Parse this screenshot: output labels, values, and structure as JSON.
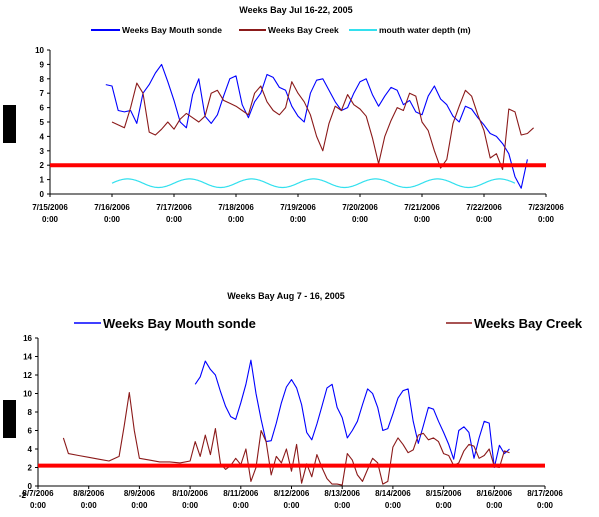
{
  "chart_data": [
    {
      "type": "line",
      "title": "Weeks Bay Jul 16-22, 2005",
      "ylim": [
        0,
        10
      ],
      "yticks": [
        0,
        1,
        2,
        3,
        4,
        5,
        6,
        7,
        8,
        9,
        10
      ],
      "xlim": [
        "2006-07-15",
        "2006-07-23"
      ],
      "xticks": [
        [
          "7/15/2006",
          "0:00"
        ],
        [
          "7/16/2006",
          "0:00"
        ],
        [
          "7/17/2006",
          "0:00"
        ],
        [
          "7/18/2006",
          "0:00"
        ],
        [
          "7/19/2006",
          "0:00"
        ],
        [
          "7/20/2006",
          "0:00"
        ],
        [
          "7/21/2006",
          "0:00"
        ],
        [
          "7/22/2006",
          "0:00"
        ],
        [
          "7/23/2006",
          "0:00"
        ]
      ],
      "legend_position": "top",
      "threshold": {
        "y": 2,
        "color": "#ff0000"
      },
      "series": [
        {
          "name": "Weeks Bay Mouth sonde",
          "color": "#0000ff",
          "x": [
            15.9,
            16.0,
            16.1,
            16.2,
            16.3,
            16.4,
            16.5,
            16.6,
            16.7,
            16.8,
            16.9,
            17.0,
            17.1,
            17.2,
            17.3,
            17.4,
            17.5,
            17.6,
            17.7,
            17.8,
            17.9,
            18.0,
            18.1,
            18.2,
            18.3,
            18.4,
            18.5,
            18.6,
            18.7,
            18.8,
            18.9,
            19.0,
            19.1,
            19.2,
            19.3,
            19.4,
            19.5,
            19.6,
            19.7,
            19.8,
            19.9,
            20.0,
            20.1,
            20.2,
            20.3,
            20.4,
            20.5,
            20.6,
            20.7,
            20.8,
            20.9,
            21.0,
            21.1,
            21.2,
            21.3,
            21.4,
            21.5,
            21.6,
            21.7,
            21.8,
            21.9,
            22.0,
            22.1,
            22.2,
            22.3,
            22.4,
            22.5,
            22.6,
            22.7
          ],
          "y": [
            7.6,
            7.5,
            5.8,
            5.7,
            5.8,
            4.9,
            7.0,
            7.6,
            8.4,
            9.0,
            7.8,
            6.5,
            5.0,
            4.6,
            6.9,
            8.0,
            5.4,
            4.9,
            5.5,
            6.8,
            8.0,
            8.2,
            6.2,
            5.3,
            6.4,
            7.0,
            8.3,
            8.1,
            7.4,
            7.2,
            6.1,
            5.4,
            5.0,
            7.0,
            7.9,
            8.0,
            7.2,
            6.4,
            5.8,
            6.0,
            7.0,
            7.8,
            8.0,
            6.9,
            6.1,
            6.8,
            7.4,
            7.2,
            6.2,
            6.5,
            5.7,
            5.5,
            6.8,
            7.5,
            6.6,
            6.2,
            5.4,
            5.0,
            6.1,
            5.9,
            5.3,
            4.8,
            4.2,
            4.0,
            3.5,
            2.8,
            1.2,
            0.4,
            2.4
          ]
        },
        {
          "name": "Weeks Bay Creek",
          "color": "#8b1a1a",
          "x": [
            16.0,
            16.1,
            16.2,
            16.3,
            16.4,
            16.5,
            16.6,
            16.7,
            16.8,
            16.9,
            17.0,
            17.1,
            17.2,
            17.3,
            17.4,
            17.5,
            17.6,
            17.7,
            17.8,
            17.9,
            18.0,
            18.1,
            18.2,
            18.3,
            18.4,
            18.5,
            18.6,
            18.7,
            18.8,
            18.9,
            19.0,
            19.1,
            19.2,
            19.3,
            19.4,
            19.5,
            19.6,
            19.7,
            19.8,
            19.9,
            20.0,
            20.1,
            20.2,
            20.3,
            20.4,
            20.5,
            20.6,
            20.7,
            20.8,
            20.9,
            21.0,
            21.1,
            21.2,
            21.3,
            21.4,
            21.5,
            21.6,
            21.7,
            21.8,
            21.9,
            22.0,
            22.1,
            22.2,
            22.3,
            22.4,
            22.5,
            22.6,
            22.7,
            22.8
          ],
          "y": [
            5.0,
            4.8,
            4.6,
            6.0,
            7.7,
            7.0,
            4.3,
            4.1,
            4.5,
            5.0,
            4.5,
            5.2,
            5.6,
            5.3,
            5.0,
            5.4,
            7.0,
            7.2,
            6.5,
            6.3,
            6.1,
            5.8,
            5.5,
            7.0,
            7.5,
            6.4,
            5.8,
            5.5,
            6.0,
            7.8,
            7.0,
            6.4,
            5.5,
            4.0,
            3.0,
            4.9,
            6.1,
            5.8,
            6.9,
            6.2,
            5.9,
            5.4,
            3.9,
            2.1,
            4.0,
            5.1,
            6.0,
            5.8,
            7.0,
            6.8,
            5.0,
            4.4,
            3.0,
            1.8,
            2.4,
            4.9,
            6.1,
            7.2,
            6.8,
            5.5,
            4.4,
            2.5,
            2.8,
            1.7,
            5.9,
            5.7,
            4.1,
            4.2,
            4.6
          ]
        },
        {
          "name": "mouth water depth (m)",
          "color": "#33e0ee",
          "wave": {
            "x_start": 16.0,
            "x_end": 22.5,
            "center": 0.75,
            "amplitude": 0.3,
            "period_days": 1.0
          }
        }
      ]
    },
    {
      "type": "line",
      "title": "Weeks Bay Aug 7 - 16, 2005",
      "ylim": [
        0,
        16
      ],
      "yticks": [
        0,
        2,
        4,
        6,
        8,
        10,
        12,
        14,
        16
      ],
      "extra_tick_label": "-2",
      "xlim": [
        "2006-08-07",
        "2006-08-17"
      ],
      "xticks": [
        [
          "8/7/2006",
          "0:00"
        ],
        [
          "8/8/2006",
          "0:00"
        ],
        [
          "8/9/2006",
          "0:00"
        ],
        [
          "8/10/2006",
          "0:00"
        ],
        [
          "8/11/2006",
          "0:00"
        ],
        [
          "8/12/2006",
          "0:00"
        ],
        [
          "8/13/2006",
          "0:00"
        ],
        [
          "8/14/2006",
          "0:00"
        ],
        [
          "8/15/2006",
          "0:00"
        ],
        [
          "8/16/2006",
          "0:00"
        ],
        [
          "8/17/2006",
          "0:00"
        ]
      ],
      "legend_position": "top",
      "threshold": {
        "y": 2.2,
        "color": "#ff0000"
      },
      "series": [
        {
          "name": "Weeks Bay Mouth sonde",
          "color": "#0000ff",
          "x": [
            10.1,
            10.2,
            10.3,
            10.4,
            10.5,
            10.6,
            10.7,
            10.8,
            10.9,
            11.0,
            11.1,
            11.2,
            11.3,
            11.4,
            11.5,
            11.6,
            11.7,
            11.8,
            11.9,
            12.0,
            12.1,
            12.2,
            12.3,
            12.4,
            12.5,
            12.6,
            12.7,
            12.8,
            12.9,
            13.0,
            13.1,
            13.2,
            13.3,
            13.4,
            13.5,
            13.6,
            13.7,
            13.8,
            13.9,
            14.0,
            14.1,
            14.2,
            14.3,
            14.4,
            14.5,
            14.6,
            14.7,
            14.8,
            14.9,
            15.0,
            15.1,
            15.2,
            15.3,
            15.4,
            15.5,
            15.6,
            15.7,
            15.8,
            15.9,
            16.0,
            16.1,
            16.2,
            16.3
          ],
          "y": [
            11.0,
            11.8,
            13.5,
            12.6,
            12.0,
            10.2,
            8.6,
            7.5,
            7.2,
            9.0,
            11.0,
            13.6,
            10.0,
            7.2,
            4.8,
            4.9,
            6.8,
            9.0,
            10.7,
            11.5,
            10.6,
            8.8,
            5.8,
            5.0,
            6.7,
            8.6,
            10.6,
            11.0,
            8.5,
            7.4,
            5.2,
            6.0,
            7.0,
            8.8,
            10.5,
            10.0,
            8.5,
            6.0,
            6.2,
            7.8,
            9.5,
            10.3,
            10.5,
            7.0,
            4.6,
            6.5,
            8.5,
            8.3,
            7.0,
            5.8,
            4.5,
            2.9,
            6.0,
            6.4,
            5.8,
            3.0,
            5.2,
            7.0,
            6.8,
            2.0,
            4.4,
            3.5,
            4.0
          ]
        },
        {
          "name": "Weeks Bay Creek",
          "color": "#8b1a1a",
          "x": [
            7.5,
            7.6,
            7.8,
            8.0,
            8.2,
            8.4,
            8.6,
            8.7,
            8.8,
            8.9,
            9.0,
            9.2,
            9.4,
            9.6,
            9.8,
            10.0,
            10.1,
            10.2,
            10.3,
            10.4,
            10.5,
            10.6,
            10.7,
            10.8,
            10.9,
            11.0,
            11.1,
            11.2,
            11.3,
            11.4,
            11.5,
            11.6,
            11.7,
            11.8,
            11.9,
            12.0,
            12.1,
            12.2,
            12.3,
            12.4,
            12.5,
            12.6,
            12.7,
            12.8,
            12.9,
            13.0,
            13.1,
            13.2,
            13.3,
            13.4,
            13.5,
            13.6,
            13.7,
            13.8,
            13.9,
            14.0,
            14.1,
            14.2,
            14.3,
            14.4,
            14.5,
            14.6,
            14.7,
            14.8,
            14.9,
            15.0,
            15.1,
            15.2,
            15.3,
            15.4,
            15.5,
            15.6,
            15.7,
            15.8,
            15.9,
            16.0,
            16.1,
            16.2,
            16.3
          ],
          "y": [
            5.2,
            3.5,
            3.3,
            3.1,
            2.9,
            2.7,
            3.2,
            6.5,
            10.1,
            6.0,
            3.0,
            2.8,
            2.6,
            2.6,
            2.5,
            2.7,
            4.8,
            3.2,
            5.5,
            3.4,
            6.2,
            2.4,
            1.8,
            2.2,
            3.0,
            2.3,
            4.0,
            0.5,
            2.0,
            6.0,
            4.8,
            1.2,
            3.2,
            2.5,
            4.0,
            1.6,
            4.5,
            0.3,
            2.4,
            1.0,
            3.4,
            2.0,
            0.8,
            0.2,
            0.2,
            0.1,
            3.5,
            2.8,
            1.2,
            0.5,
            1.8,
            3.0,
            2.5,
            0.2,
            0.5,
            4.2,
            5.2,
            4.5,
            3.6,
            3.9,
            5.5,
            5.7,
            5.0,
            5.2,
            4.8,
            3.5,
            3.3,
            2.2,
            2.5,
            3.8,
            4.5,
            4.3,
            3.0,
            3.3,
            4.0,
            2.1,
            2.0,
            3.8,
            3.6
          ]
        }
      ]
    }
  ]
}
